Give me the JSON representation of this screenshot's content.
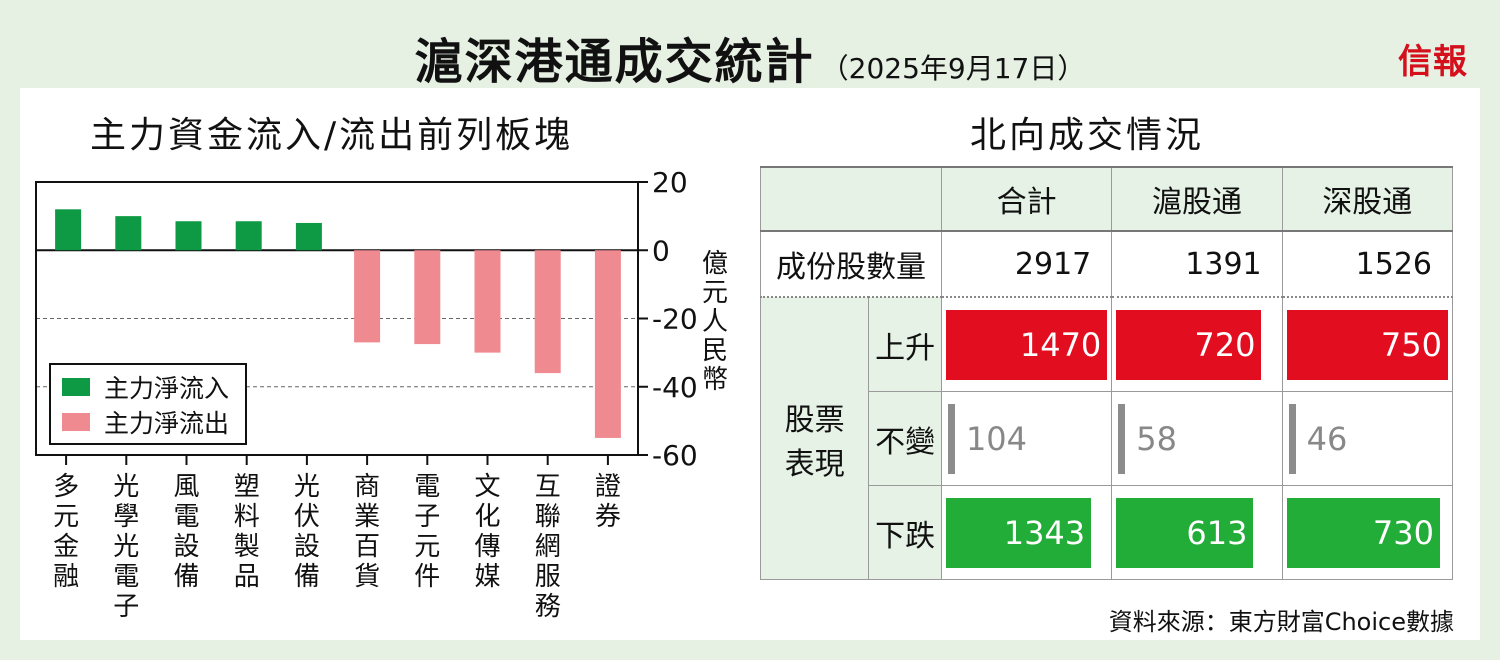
{
  "header": {
    "title": "滬深港通成交統計",
    "date": "（2025年9月17日）",
    "logo": "信報"
  },
  "left_title": "主力資金流入/流出前列板塊",
  "right_title": "北向成交情況",
  "source": "資料來源：東方財富Choice數據",
  "colors": {
    "inflow": "#0e9a44",
    "outflow": "#f08a91",
    "up": "#e30d20",
    "down": "#22ad38",
    "flat": "#8c8c8c"
  },
  "chart_data": {
    "type": "bar",
    "categories": [
      "多元金融",
      "光學光電子",
      "風電設備",
      "塑料製品",
      "光伏設備",
      "商業百貨",
      "電子元件",
      "文化傳媒",
      "互聯網服務",
      "證券"
    ],
    "series": [
      {
        "name": "主力淨流入",
        "values": [
          12,
          10,
          8.5,
          8.5,
          8,
          null,
          null,
          null,
          null,
          null
        ]
      },
      {
        "name": "主力淨流出",
        "values": [
          null,
          null,
          null,
          null,
          null,
          -27,
          -27.5,
          -30,
          -36,
          -55
        ]
      }
    ],
    "ylim": [
      -60,
      20
    ],
    "yticks": [
      20,
      0,
      -20,
      -40,
      -60
    ],
    "ylabel": "億元人民幣",
    "legend_position": "bottom-left",
    "grid_lines": [
      -20,
      -40
    ]
  },
  "table": {
    "headers": [
      "合計",
      "滬股通",
      "深股通"
    ],
    "count_label": "成份股數量",
    "counts": [
      "2917",
      "1391",
      "1526"
    ],
    "group_label": "股票表現",
    "rows": [
      {
        "label": "上升",
        "kind": "up",
        "values": [
          "1470",
          "720",
          "750"
        ],
        "fill": [
          1.0,
          0.9,
          1.0
        ]
      },
      {
        "label": "不變",
        "kind": "flat",
        "values": [
          "104",
          "58",
          "46"
        ]
      },
      {
        "label": "下跌",
        "kind": "down",
        "values": [
          "1343",
          "613",
          "730"
        ],
        "fill": [
          0.9,
          0.85,
          0.95
        ]
      }
    ]
  }
}
